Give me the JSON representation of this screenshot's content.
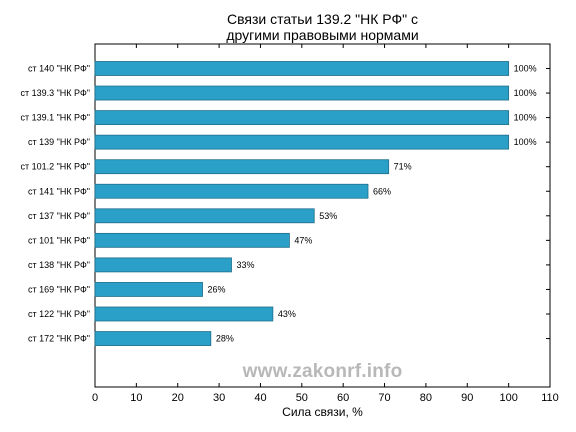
{
  "chart_data": {
    "type": "bar",
    "orientation": "horizontal",
    "title_lines": [
      "Связи статьи 139.2 \"НК РФ\" с",
      "другими правовыми нормами"
    ],
    "xlabel": "Сила связи, %",
    "ylabel": "",
    "xlim": [
      0,
      110
    ],
    "xticks": [
      0,
      10,
      20,
      30,
      40,
      50,
      60,
      70,
      80,
      90,
      100,
      110
    ],
    "grid": false,
    "bar_color": "#2a9fc7",
    "bar_edge_color": "#1f6f8b",
    "categories": [
      "ст 140 \"НК РФ\"",
      "ст 139.3 \"НК РФ\"",
      "ст 139.1 \"НК РФ\"",
      "ст 139 \"НК РФ\"",
      "ст 101.2 \"НК РФ\"",
      "ст 141 \"НК РФ\"",
      "ст 137 \"НК РФ\"",
      "ст 101 \"НК РФ\"",
      "ст 138 \"НК РФ\"",
      "ст 169 \"НК РФ\"",
      "ст 122 \"НК РФ\"",
      "ст 172 \"НК РФ\""
    ],
    "values": [
      100,
      100,
      100,
      100,
      71,
      66,
      53,
      47,
      33,
      26,
      43,
      28
    ],
    "value_labels": [
      "100%",
      "100%",
      "100%",
      "100%",
      "71%",
      "66%",
      "53%",
      "47%",
      "33%",
      "26%",
      "43%",
      "28%"
    ]
  },
  "watermark": "www.zakonrf.info"
}
